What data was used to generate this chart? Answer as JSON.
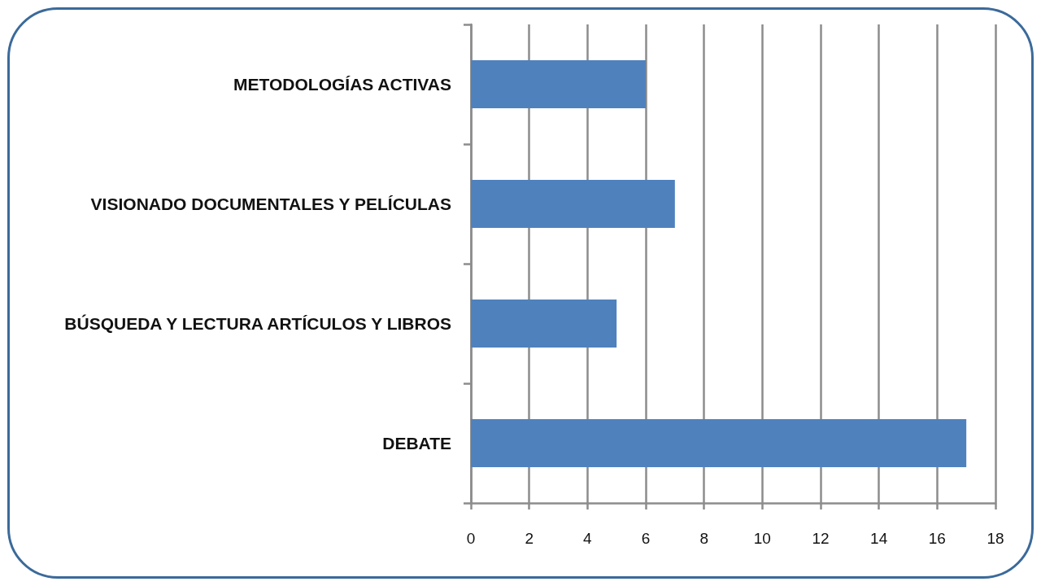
{
  "chart_data": {
    "type": "bar",
    "orientation": "horizontal",
    "categories": [
      "METODOLOGÍAS ACTIVAS",
      "VISIONADO DOCUMENTALES Y PELÍCULAS",
      "BÚSQUEDA Y LECTURA ARTÍCULOS Y LIBROS",
      "DEBATE"
    ],
    "values": [
      6,
      7,
      5,
      17
    ],
    "color": "#4f81bd",
    "xlim": [
      0,
      18
    ],
    "xticks": [
      0,
      2,
      4,
      6,
      8,
      10,
      12,
      14,
      16,
      18
    ],
    "grid": "x"
  }
}
